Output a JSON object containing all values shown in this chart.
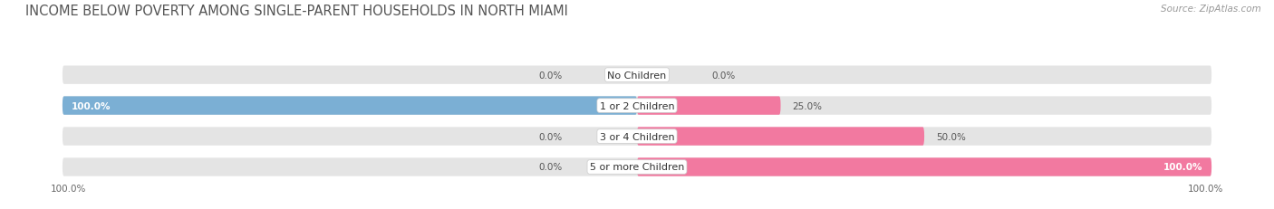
{
  "title": "INCOME BELOW POVERTY AMONG SINGLE-PARENT HOUSEHOLDS IN NORTH MIAMI",
  "source": "Source: ZipAtlas.com",
  "categories": [
    "No Children",
    "1 or 2 Children",
    "3 or 4 Children",
    "5 or more Children"
  ],
  "single_father": [
    0.0,
    100.0,
    0.0,
    0.0
  ],
  "single_mother": [
    0.0,
    25.0,
    50.0,
    100.0
  ],
  "father_color": "#7bafd4",
  "mother_color": "#f279a0",
  "bg_color": "#ffffff",
  "bar_bg_color": "#e4e4e4",
  "bar_height": 0.6,
  "xlim": 100,
  "title_fontsize": 10.5,
  "label_fontsize": 8,
  "tick_fontsize": 7.5,
  "source_fontsize": 7.5,
  "value_color_dark": "#555555",
  "value_color_white": "#ffffff"
}
